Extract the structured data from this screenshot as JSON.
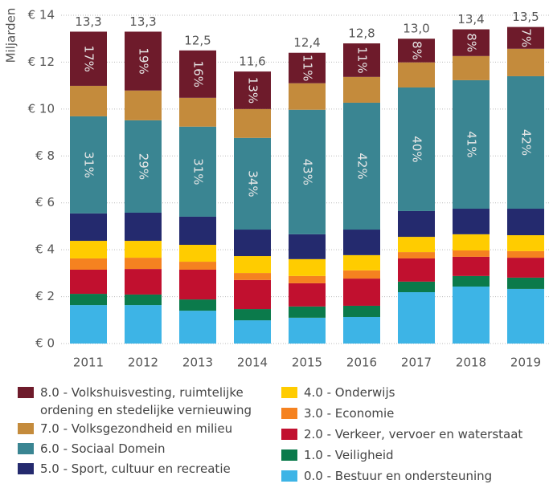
{
  "chart_data": {
    "type": "stacked_bar",
    "y_label": "Miljarden",
    "categories": [
      "2011",
      "2012",
      "2013",
      "2014",
      "2015",
      "2016",
      "2017",
      "2018",
      "2019"
    ],
    "ylim": [
      0,
      14
    ],
    "yticks": [
      {
        "value": 0,
        "label": "€ 0"
      },
      {
        "value": 2,
        "label": "€ 2"
      },
      {
        "value": 4,
        "label": "€ 4"
      },
      {
        "value": 6,
        "label": "€ 6"
      },
      {
        "value": 8,
        "label": "€ 8"
      },
      {
        "value": 10,
        "label": "€ 10"
      },
      {
        "value": 12,
        "label": "€ 12"
      },
      {
        "value": 14,
        "label": "€ 14"
      }
    ],
    "grid": true,
    "series": [
      {
        "name": "0.0 - Bestuur en ondersteuning",
        "color": "#3db4e6",
        "values": [
          1.64,
          1.64,
          1.4,
          0.99,
          1.1,
          1.13,
          2.19,
          2.43,
          2.33
        ]
      },
      {
        "name": "1.0 - Veiligheid",
        "color": "#0b7a4b",
        "values": [
          0.48,
          0.45,
          0.48,
          0.48,
          0.48,
          0.48,
          0.45,
          0.45,
          0.48
        ]
      },
      {
        "name": "2.0 - Verkeer, vervoer en waterstaat",
        "color": "#c1102f",
        "values": [
          1.03,
          1.09,
          1.27,
          1.24,
          0.99,
          1.16,
          0.99,
          0.82,
          0.85
        ]
      },
      {
        "name": "3.0 - Economie",
        "color": "#f58220",
        "values": [
          0.48,
          0.48,
          0.34,
          0.3,
          0.31,
          0.35,
          0.27,
          0.27,
          0.28
        ]
      },
      {
        "name": "4.0 - Onderwijs",
        "color": "#ffcc00",
        "values": [
          0.75,
          0.72,
          0.72,
          0.72,
          0.72,
          0.65,
          0.65,
          0.69,
          0.68
        ]
      },
      {
        "name": "5.0 - Sport, cultuur en recreatie",
        "color": "#242a6e",
        "values": [
          1.17,
          1.2,
          1.2,
          1.13,
          1.06,
          1.09,
          1.1,
          1.09,
          1.13
        ]
      },
      {
        "name": "6.0 - Sociaal Domein",
        "color": "#3a8592",
        "values": [
          4.14,
          3.94,
          3.84,
          3.91,
          5.31,
          5.41,
          5.27,
          5.48,
          5.65
        ],
        "shares": {
          "values": [
            31,
            29,
            31,
            34,
            43,
            42,
            40,
            41,
            42
          ],
          "value_labels": [
            "31%",
            "29%",
            "31%",
            "34%",
            "43%",
            "42%",
            "40%",
            "41%",
            "42%"
          ]
        }
      },
      {
        "name": "7.0 - Volksgezondheid en milieu",
        "color": "#c48b3c",
        "values": [
          1.3,
          1.27,
          1.23,
          1.23,
          1.13,
          1.1,
          1.07,
          1.03,
          1.17
        ]
      },
      {
        "name": "8.0 - Volkshuisvesting, ruimtelijke ordening en stedelijke vernieuwing",
        "color": "#6e1b2b",
        "values": [
          2.31,
          2.51,
          2.02,
          1.6,
          1.3,
          1.43,
          1.01,
          1.14,
          0.93
        ],
        "shares": {
          "values": [
            17,
            19,
            16,
            13,
            11,
            11,
            8,
            8,
            7
          ],
          "value_labels": [
            "17%",
            "19%",
            "16%",
            "13%",
            "11%",
            "11%",
            "8%",
            "8%",
            "7%"
          ]
        }
      }
    ],
    "totals": {
      "values": [
        13.3,
        13.3,
        12.5,
        11.6,
        12.4,
        12.8,
        13.0,
        13.4,
        13.5
      ],
      "value_labels": [
        "13,3",
        "13,3",
        "12,5",
        "11,6",
        "12,4",
        "12,8",
        "13,0",
        "13,4",
        "13,5"
      ]
    }
  }
}
